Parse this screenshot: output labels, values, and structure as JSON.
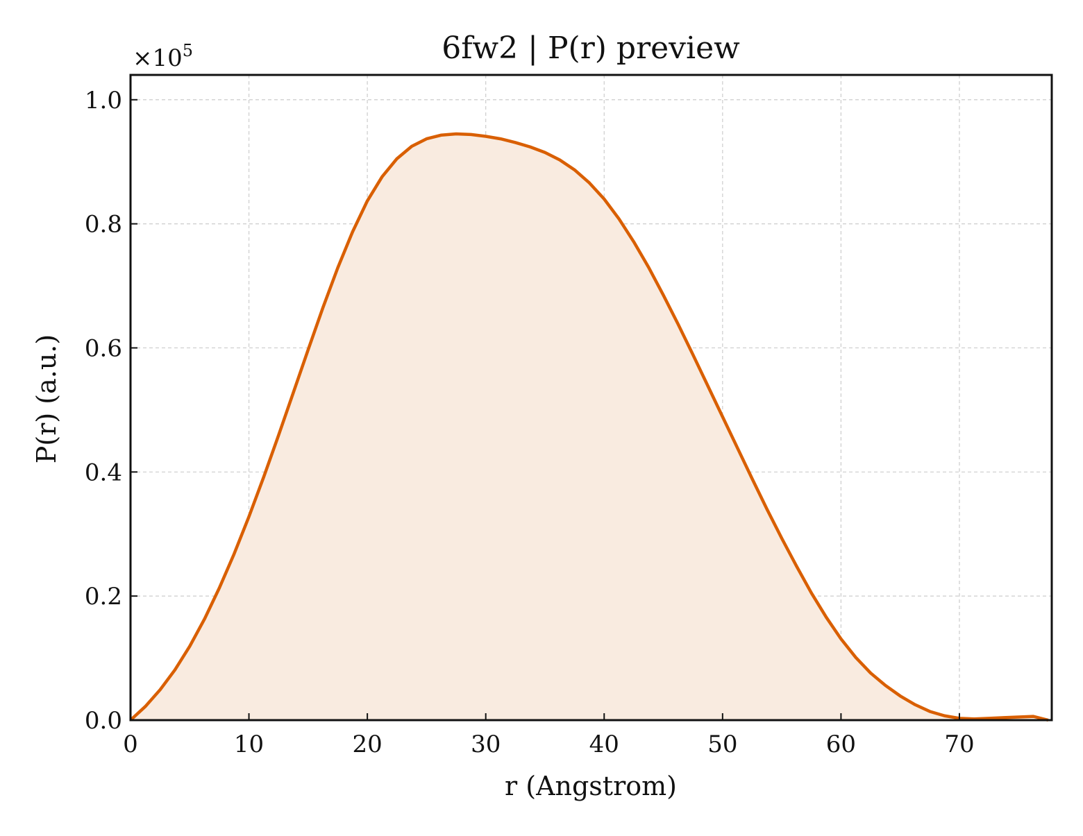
{
  "chart_data": {
    "type": "area",
    "title": "6fw2 | P(r) preview",
    "xlabel": "r (Angstrom)",
    "ylabel": "P(r) (a.u.)",
    "y_multiplier_label": "×10",
    "y_multiplier_exponent": "5",
    "xlim": [
      0,
      77.8
    ],
    "ylim": [
      0,
      1.04
    ],
    "xticks": [
      0,
      10,
      20,
      30,
      40,
      50,
      60,
      70
    ],
    "yticks": [
      0.0,
      0.2,
      0.4,
      0.6,
      0.8,
      1.0
    ],
    "xtick_labels": [
      "0",
      "10",
      "20",
      "30",
      "40",
      "50",
      "60",
      "70"
    ],
    "ytick_labels": [
      "0.0",
      "0.2",
      "0.4",
      "0.6",
      "0.8",
      "1.0"
    ],
    "grid": true,
    "line_color": "#d95f02",
    "fill_color": "#f9ebe0",
    "series": [
      {
        "x": [
          0,
          1.25,
          2.5,
          3.75,
          5.0,
          6.25,
          7.5,
          8.75,
          10.0,
          11.25,
          12.5,
          13.75,
          15.0,
          16.25,
          17.5,
          18.75,
          20.0,
          21.25,
          22.5,
          23.75,
          25.0,
          26.25,
          27.5,
          28.75,
          30.0,
          31.25,
          32.5,
          33.75,
          35.0,
          36.25,
          37.5,
          38.75,
          40.0,
          41.25,
          42.5,
          43.75,
          45.0,
          46.25,
          47.5,
          48.75,
          50.0,
          51.25,
          52.5,
          53.75,
          55.0,
          56.25,
          57.5,
          58.75,
          60.0,
          61.25,
          62.5,
          63.75,
          65.0,
          66.25,
          67.5,
          68.75,
          70.0,
          71.25,
          72.5,
          73.75,
          75.0,
          76.25,
          77.5
        ],
        "y": [
          0.0,
          0.022,
          0.049,
          0.081,
          0.119,
          0.163,
          0.213,
          0.268,
          0.328,
          0.392,
          0.459,
          0.528,
          0.597,
          0.665,
          0.729,
          0.787,
          0.837,
          0.876,
          0.905,
          0.925,
          0.937,
          0.943,
          0.945,
          0.944,
          0.941,
          0.937,
          0.931,
          0.924,
          0.915,
          0.903,
          0.887,
          0.866,
          0.84,
          0.808,
          0.771,
          0.73,
          0.685,
          0.638,
          0.589,
          0.539,
          0.489,
          0.439,
          0.389,
          0.34,
          0.293,
          0.248,
          0.205,
          0.166,
          0.131,
          0.101,
          0.076,
          0.056,
          0.039,
          0.025,
          0.014,
          0.007,
          0.003,
          0.002,
          0.003,
          0.004,
          0.005,
          0.006,
          0.0
        ]
      }
    ]
  }
}
